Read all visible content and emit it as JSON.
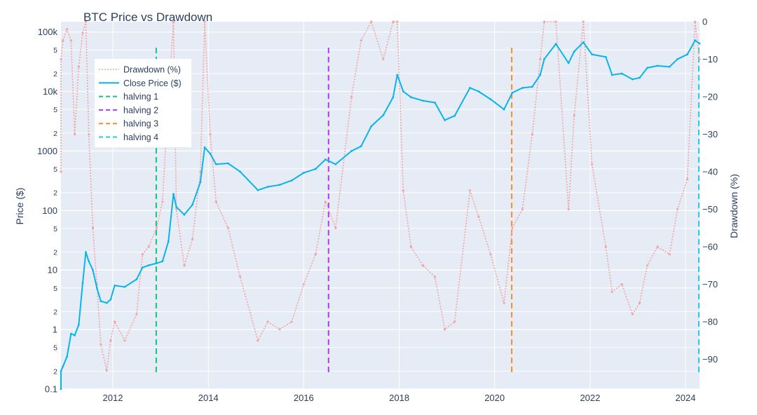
{
  "chart_data": {
    "type": "line",
    "title": "BTC Price vs Drawdown",
    "xlabel": "",
    "ylabel": "Price ($)",
    "y2label": "Drawdown (%)",
    "y_scale": "log",
    "ylim": [
      0.1,
      130000
    ],
    "y2lim": [
      -97.8,
      0
    ],
    "x_ticks": [
      "2012",
      "2014",
      "2016",
      "2018",
      "2020",
      "2022",
      "2024"
    ],
    "y_ticks_major": [
      "0.1",
      "1",
      "10",
      "100",
      "1000",
      "10k",
      "100k"
    ],
    "y_ticks_minor": [
      "2",
      "5"
    ],
    "y2_ticks": [
      "0",
      "−10",
      "−20",
      "−30",
      "−40",
      "−50",
      "−60",
      "−70",
      "−80",
      "−90"
    ],
    "legend_position": "top-left",
    "grid": true,
    "colors": {
      "plot_bg": "#e5ecf6",
      "grid": "#ffffff",
      "price": "#0ab4e8",
      "drawdown": "#f4a4a4",
      "halving_1": "#1cbe82",
      "halving_2": "#ab3ce6",
      "halving_3": "#fb8c2c",
      "halving_4": "#2cc8d8"
    },
    "series": [
      {
        "name": "Close Price ($)",
        "axis": "price",
        "style": "solid",
        "x": [
          "2010-10-15",
          "2010-11-15",
          "2010-12-15",
          "2011-01-15",
          "2011-02-15",
          "2011-03-15",
          "2011-04-15",
          "2011-05-15",
          "2011-06-08",
          "2011-07-01",
          "2011-08-01",
          "2011-09-01",
          "2011-10-01",
          "2011-11-15",
          "2011-12-15",
          "2012-01-15",
          "2012-04-01",
          "2012-07-01",
          "2012-08-15",
          "2012-10-01",
          "2012-12-01",
          "2013-01-15",
          "2013-03-01",
          "2013-04-09",
          "2013-05-01",
          "2013-07-01",
          "2013-09-01",
          "2013-11-01",
          "2013-12-04",
          "2014-01-15",
          "2014-03-01",
          "2014-06-01",
          "2014-09-01",
          "2015-01-15",
          "2015-04-01",
          "2015-07-01",
          "2015-10-01",
          "2016-01-01",
          "2016-04-01",
          "2016-06-15",
          "2016-09-01",
          "2017-01-01",
          "2017-03-15",
          "2017-06-01",
          "2017-09-01",
          "2017-11-15",
          "2017-12-17",
          "2018-02-01",
          "2018-04-01",
          "2018-07-01",
          "2018-10-01",
          "2018-12-15",
          "2019-03-01",
          "2019-06-26",
          "2019-09-01",
          "2019-12-01",
          "2020-03-13",
          "2020-05-15",
          "2020-08-01",
          "2020-10-15",
          "2020-12-15",
          "2021-01-15",
          "2021-04-14",
          "2021-07-20",
          "2021-09-01",
          "2021-11-10",
          "2022-01-15",
          "2022-05-01",
          "2022-06-18",
          "2022-09-01",
          "2022-11-21",
          "2023-01-15",
          "2023-03-15",
          "2023-06-01",
          "2023-09-01",
          "2023-11-01",
          "2024-01-15",
          "2024-03-14",
          "2024-04-20"
        ],
        "values": [
          0.1,
          0.2,
          0.24,
          0.35,
          0.85,
          0.8,
          1.2,
          6,
          20,
          14,
          10,
          5,
          3,
          2.8,
          3.2,
          5.5,
          5.2,
          7,
          11,
          12,
          13,
          14,
          30,
          190,
          115,
          85,
          125,
          300,
          1150,
          900,
          600,
          620,
          450,
          220,
          250,
          270,
          320,
          430,
          500,
          720,
          600,
          1000,
          1200,
          2600,
          4000,
          8000,
          19000,
          10000,
          8000,
          7000,
          6500,
          3300,
          3900,
          11500,
          10000,
          7400,
          5000,
          9500,
          11500,
          12000,
          19000,
          35000,
          63000,
          30000,
          47000,
          67000,
          42000,
          38000,
          19000,
          20000,
          16000,
          17000,
          25000,
          27000,
          26000,
          35000,
          42000,
          72000,
          64000
        ]
      },
      {
        "name": "Drawdown (%)",
        "axis": "drawdown",
        "style": "dotted",
        "x": [
          "2010-10-15",
          "2010-11-15",
          "2010-12-15",
          "2011-01-15",
          "2011-02-15",
          "2011-03-15",
          "2011-04-15",
          "2011-05-15",
          "2011-06-08",
          "2011-07-01",
          "2011-08-01",
          "2011-09-01",
          "2011-10-01",
          "2011-11-15",
          "2011-12-15",
          "2012-01-15",
          "2012-04-01",
          "2012-07-01",
          "2012-08-15",
          "2012-10-01",
          "2012-12-01",
          "2013-01-15",
          "2013-03-01",
          "2013-04-09",
          "2013-05-01",
          "2013-07-01",
          "2013-09-01",
          "2013-11-01",
          "2013-12-04",
          "2014-01-15",
          "2014-03-01",
          "2014-06-01",
          "2014-09-01",
          "2015-01-15",
          "2015-04-01",
          "2015-07-01",
          "2015-10-01",
          "2016-01-01",
          "2016-04-01",
          "2016-06-15",
          "2016-09-01",
          "2017-01-01",
          "2017-03-15",
          "2017-06-01",
          "2017-09-01",
          "2017-11-15",
          "2017-12-17",
          "2018-02-01",
          "2018-04-01",
          "2018-07-01",
          "2018-10-01",
          "2018-12-15",
          "2019-03-01",
          "2019-06-26",
          "2019-09-01",
          "2019-12-01",
          "2020-03-13",
          "2020-05-15",
          "2020-08-01",
          "2020-10-15",
          "2020-12-15",
          "2021-01-15",
          "2021-04-14",
          "2021-07-20",
          "2021-09-01",
          "2021-11-10",
          "2022-01-15",
          "2022-05-01",
          "2022-06-18",
          "2022-09-01",
          "2022-11-21",
          "2023-01-15",
          "2023-03-15",
          "2023-06-01",
          "2023-09-01",
          "2023-11-01",
          "2024-01-15",
          "2024-03-14",
          "2024-04-20"
        ],
        "values": [
          -40,
          -10,
          -5,
          -2,
          -5,
          -30,
          -12,
          -3,
          0,
          -30,
          -55,
          -70,
          -86,
          -93,
          -85,
          -80,
          -85,
          -78,
          -62,
          -60,
          -55,
          -48,
          -20,
          0,
          -50,
          -65,
          -58,
          -40,
          0,
          -30,
          -48,
          -55,
          -68,
          -85,
          -80,
          -82,
          -80,
          -70,
          -62,
          -48,
          -55,
          -20,
          -5,
          0,
          -10,
          0,
          0,
          -45,
          -60,
          -65,
          -68,
          -82,
          -80,
          -45,
          -52,
          -62,
          -75,
          -55,
          -50,
          -30,
          -10,
          0,
          0,
          -50,
          -25,
          0,
          -38,
          -60,
          -72,
          -70,
          -78,
          -75,
          -65,
          -60,
          -62,
          -50,
          -42,
          0,
          -10
        ]
      }
    ],
    "halvings": [
      {
        "name": "halving 1",
        "date": "2012-11-28"
      },
      {
        "name": "halving 2",
        "date": "2016-07-09"
      },
      {
        "name": "halving 3",
        "date": "2020-05-11"
      },
      {
        "name": "halving 4",
        "date": "2024-04-20"
      }
    ]
  }
}
